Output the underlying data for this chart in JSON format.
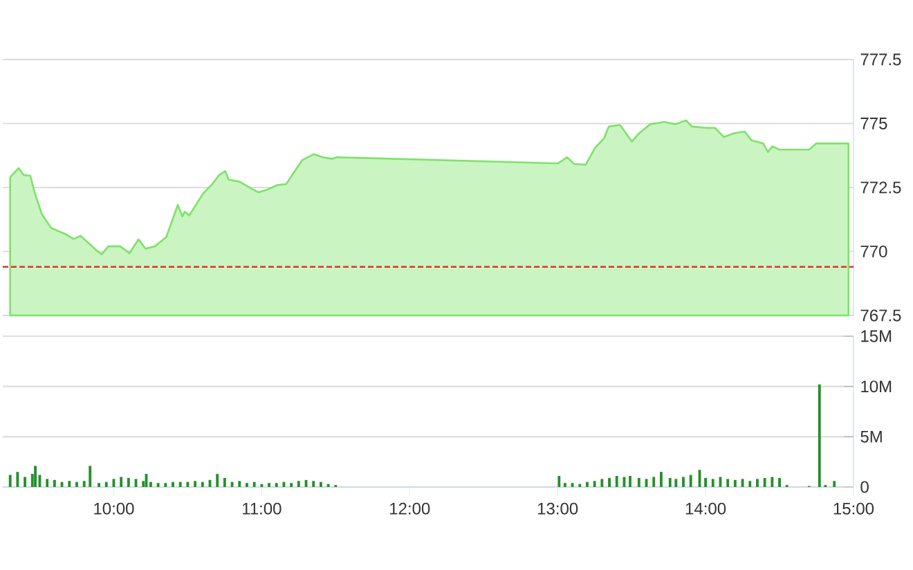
{
  "chart_data": [
    {
      "type": "area",
      "color": "#7ee36a",
      "xlim": [
        9.25,
        15
      ],
      "ylim": [
        767.5,
        777.5
      ],
      "yticks": [
        767.5,
        770,
        772.5,
        775,
        777.5
      ],
      "grid": "y",
      "tick_labels": "y",
      "x": [
        9.3,
        9.358,
        9.39,
        9.436,
        9.467,
        9.514,
        9.577,
        9.67,
        9.729,
        9.776,
        9.888,
        9.919,
        9.963,
        10.044,
        10.106,
        10.168,
        10.215,
        10.278,
        10.355,
        10.433,
        10.464,
        10.479,
        10.511,
        10.605,
        10.666,
        10.713,
        10.754,
        10.776,
        10.853,
        10.932,
        10.979,
        11.04,
        11.103,
        11.165,
        11.227,
        11.274,
        11.352,
        11.414,
        11.477,
        11.507,
        13.003,
        13.065,
        13.112,
        13.19,
        13.252,
        13.315,
        13.346,
        13.423,
        13.502,
        13.549,
        13.626,
        13.72,
        13.797,
        13.869,
        13.907,
        14.0,
        14.063,
        14.124,
        14.187,
        14.264,
        14.311,
        14.39,
        14.421,
        14.452,
        14.498,
        14.701,
        14.748,
        14.966
      ],
      "values": [
        772.9,
        773.26,
        772.99,
        772.96,
        772.27,
        771.46,
        770.92,
        770.69,
        770.49,
        770.61,
        770.02,
        769.89,
        770.2,
        770.2,
        769.93,
        770.47,
        770.11,
        770.2,
        770.56,
        771.82,
        771.37,
        771.55,
        771.41,
        772.27,
        772.63,
        772.99,
        773.14,
        772.81,
        772.72,
        772.45,
        772.31,
        772.42,
        772.59,
        772.63,
        773.17,
        773.57,
        773.8,
        773.68,
        773.62,
        773.68,
        773.44,
        773.68,
        773.42,
        773.39,
        774.04,
        774.43,
        774.88,
        774.94,
        774.29,
        774.61,
        774.97,
        775.06,
        774.97,
        775.12,
        774.88,
        774.83,
        774.83,
        774.47,
        774.61,
        774.69,
        774.34,
        774.22,
        773.89,
        774.11,
        773.98,
        773.98,
        774.22,
        774.22
      ],
      "ref_lines": [
        {
          "axis": "y",
          "value": 769.4,
          "color": "#e03030",
          "line_style": "dashed"
        }
      ]
    },
    {
      "type": "bar",
      "color": "#23912a",
      "xlim": [
        9.25,
        15
      ],
      "ylim": [
        0,
        15
      ],
      "grid": "y",
      "yticks": [
        0,
        {
          "value": 5,
          "label": "5M"
        },
        {
          "value": 10,
          "label": "10M"
        },
        {
          "value": 15,
          "label": "15M"
        }
      ],
      "xticks": [
        {
          "value": 10,
          "label": "10:00"
        },
        {
          "value": 11,
          "label": "11:00"
        },
        {
          "value": 12,
          "label": "12:00"
        },
        {
          "value": 13,
          "label": "13:00"
        },
        {
          "value": 14,
          "label": "14:00"
        },
        {
          "value": 15,
          "label": "15:00"
        }
      ],
      "x": [
        9.3,
        9.35,
        9.4,
        9.45,
        9.47,
        9.5,
        9.55,
        9.6,
        9.65,
        9.7,
        9.75,
        9.8,
        9.84,
        9.9,
        9.95,
        10.0,
        10.05,
        10.1,
        10.15,
        10.2,
        10.22,
        10.25,
        10.3,
        10.35,
        10.4,
        10.45,
        10.5,
        10.55,
        10.6,
        10.65,
        10.7,
        10.75,
        10.8,
        10.85,
        10.9,
        10.95,
        11.0,
        11.05,
        11.1,
        11.15,
        11.2,
        11.25,
        11.3,
        11.35,
        11.4,
        11.45,
        11.5,
        13.01,
        13.05,
        13.1,
        13.15,
        13.2,
        13.25,
        13.3,
        13.35,
        13.4,
        13.45,
        13.49,
        13.55,
        13.6,
        13.65,
        13.7,
        13.76,
        13.8,
        13.85,
        13.9,
        13.96,
        14.0,
        14.05,
        14.1,
        14.15,
        14.2,
        14.25,
        14.3,
        14.35,
        14.4,
        14.45,
        14.5,
        14.55,
        14.7,
        14.77,
        14.81,
        14.87
      ],
      "values": [
        1.2,
        1.5,
        1.0,
        1.3,
        2.1,
        1.2,
        0.8,
        0.7,
        0.5,
        0.6,
        0.5,
        0.6,
        2.1,
        0.4,
        0.5,
        0.8,
        1.0,
        0.9,
        0.8,
        0.6,
        1.3,
        0.5,
        0.4,
        0.4,
        0.5,
        0.5,
        0.5,
        0.6,
        0.5,
        0.7,
        1.3,
        0.9,
        0.5,
        0.6,
        0.4,
        0.5,
        0.3,
        0.4,
        0.4,
        0.5,
        0.4,
        0.6,
        0.7,
        0.6,
        0.5,
        0.3,
        0.2,
        1.1,
        0.4,
        0.4,
        0.3,
        0.5,
        0.6,
        0.8,
        0.9,
        1.1,
        1.0,
        1.1,
        0.9,
        0.8,
        1.0,
        1.5,
        0.9,
        0.8,
        1.0,
        1.2,
        1.7,
        0.9,
        0.8,
        1.0,
        0.8,
        0.7,
        0.8,
        0.6,
        0.8,
        0.9,
        1.0,
        0.9,
        0.2,
        0.1,
        10.2,
        0.2,
        0.6
      ]
    }
  ]
}
